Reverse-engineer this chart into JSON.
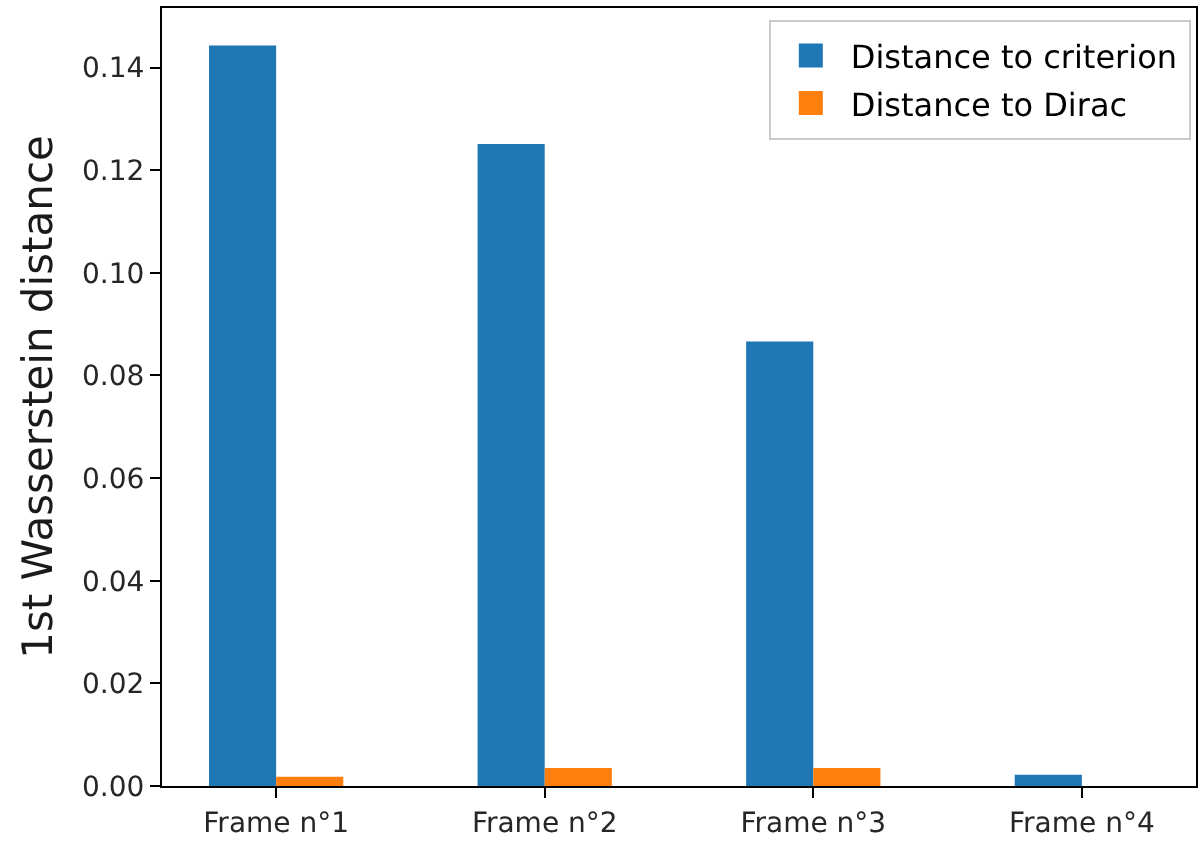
{
  "chart_data": {
    "type": "bar",
    "categories": [
      "Frame n°1",
      "Frame n°2",
      "Frame n°3",
      "Frame n°4"
    ],
    "series": [
      {
        "name": "Distance to criterion",
        "color": "#1f77b4",
        "values": [
          0.1443,
          0.1251,
          0.0866,
          0.0022
        ]
      },
      {
        "name": "Distance to Dirac",
        "color": "#ff7f0e",
        "values": [
          0.0018,
          0.0035,
          0.0035,
          0
        ]
      }
    ],
    "ylabel": "1st Wasserstein distance",
    "ylim": [
      0,
      0.1516
    ],
    "yticks": [
      {
        "value": 0,
        "label": "0.00"
      },
      0.02,
      0.04,
      0.06,
      0.08,
      {
        "value": 0.1,
        "label": "0.10"
      },
      0.12,
      0.14
    ],
    "legend": "top right"
  }
}
